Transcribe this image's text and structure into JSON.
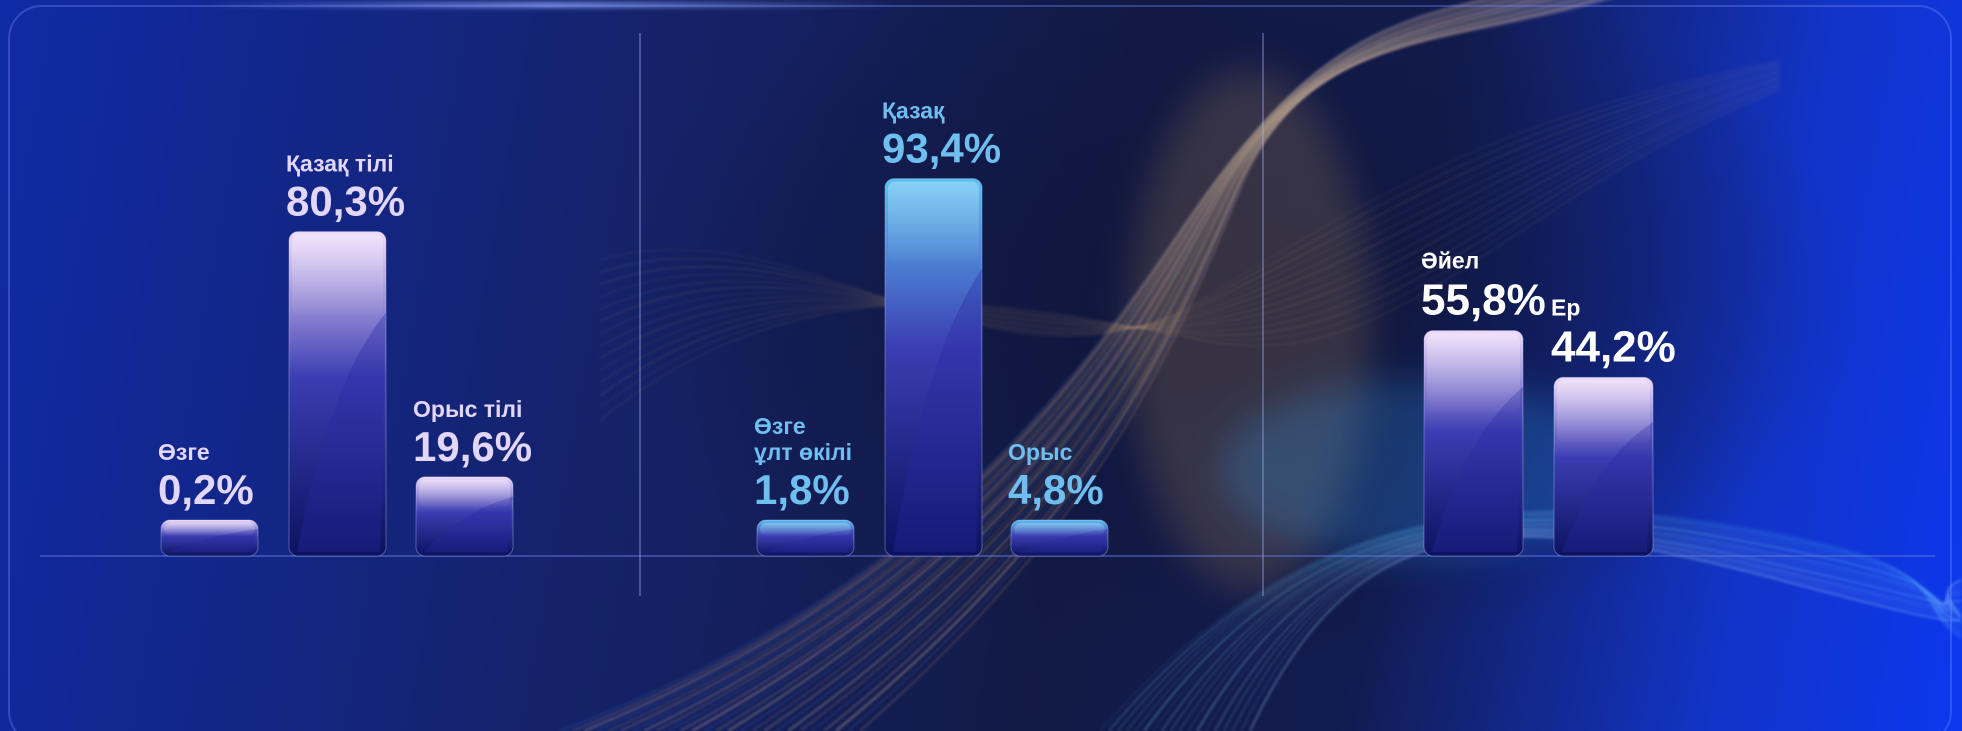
{
  "colors": {
    "lavender_text": "#e2d6fb",
    "cyan_text": "#6fbef0",
    "white_text": "#ffffff",
    "bar_lavender_top": "#f1dcfb",
    "bar_cyan_top": "#5cc1f2",
    "bar_bottom": "#0c1260",
    "baseline": "#5f74d8"
  },
  "chart_data": [
    {
      "type": "bar",
      "unit": "%",
      "categories": [
        "Өзге",
        "Қазақ тілі",
        "Орыс тілі"
      ],
      "values": [
        0.2,
        80.3,
        19.6
      ],
      "value_labels": [
        "0,2%",
        "80,3%",
        "19,6%"
      ],
      "ylim": [
        0,
        100
      ]
    },
    {
      "type": "bar",
      "unit": "%",
      "categories": [
        "Өзге ұлт өкілі",
        "Қазақ",
        "Орыс"
      ],
      "category_lines": [
        [
          "Өзге",
          "ұлт өкілі"
        ],
        [
          "Қазақ"
        ],
        [
          "Орыс"
        ]
      ],
      "values": [
        1.8,
        93.4,
        4.8
      ],
      "value_labels": [
        "1,8%",
        "93,4%",
        "4,8%"
      ],
      "ylim": [
        0,
        100
      ]
    },
    {
      "type": "bar",
      "unit": "%",
      "categories": [
        "Әйел",
        "Ер"
      ],
      "values": [
        55.8,
        44.2
      ],
      "value_labels": [
        "55,8%",
        "44,2%"
      ],
      "ylim": [
        0,
        100
      ]
    }
  ]
}
